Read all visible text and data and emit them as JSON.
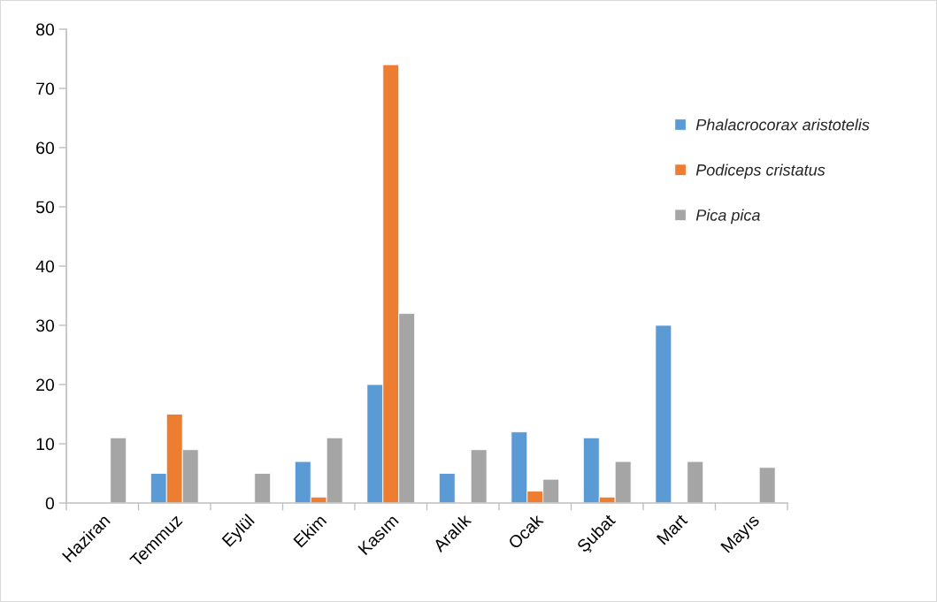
{
  "chart_data": {
    "type": "bar",
    "categories": [
      "Haziran",
      "Temmuz",
      "Eylül",
      "Ekim",
      "Kasım",
      "Aralık",
      "Ocak",
      "Şubat",
      "Mart",
      "Mayıs"
    ],
    "series": [
      {
        "name": "Phalacrocorax aristotelis",
        "color": "#5b9bd5",
        "values": [
          null,
          5,
          null,
          7,
          20,
          5,
          12,
          11,
          30,
          null
        ]
      },
      {
        "name": "Podiceps cristatus",
        "color": "#ed7d31",
        "values": [
          null,
          15,
          null,
          1,
          74,
          null,
          2,
          1,
          null,
          null
        ]
      },
      {
        "name": "Pica pica",
        "color": "#a5a5a5",
        "values": [
          11,
          9,
          5,
          11,
          32,
          9,
          4,
          7,
          7,
          6
        ]
      }
    ],
    "ylim": [
      0,
      80
    ],
    "yticks": [
      0,
      10,
      20,
      30,
      40,
      50,
      60,
      70,
      80
    ],
    "grid": false,
    "legend": "right"
  }
}
